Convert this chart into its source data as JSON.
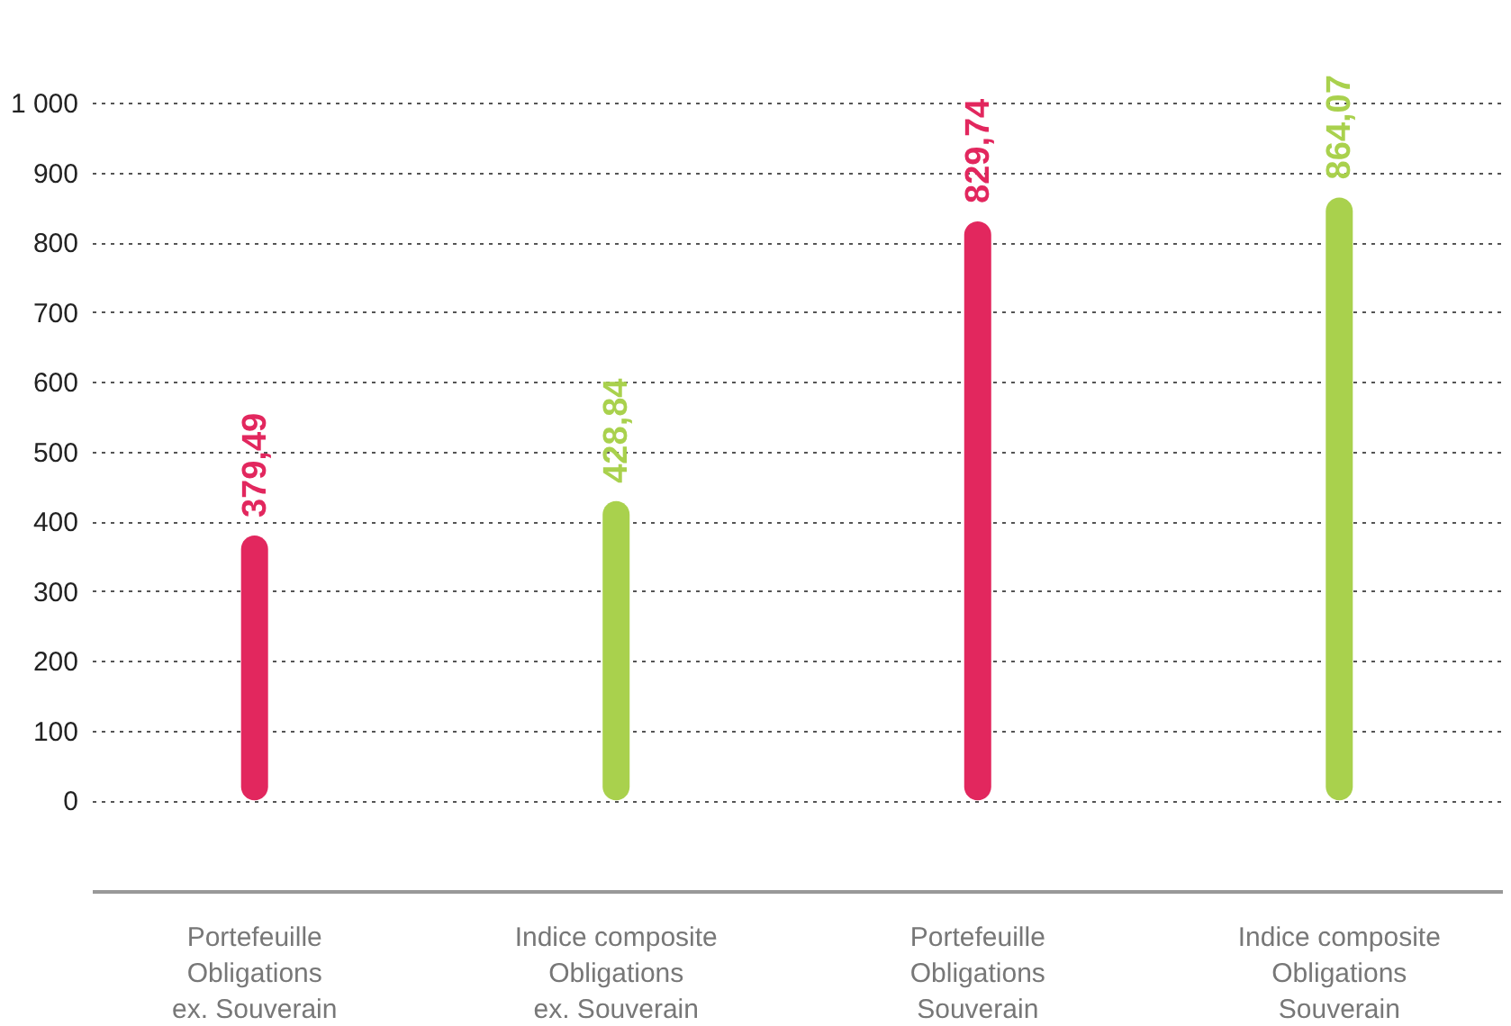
{
  "chart_data": {
    "type": "bar",
    "categories": [
      "Portefeuille\nObligations\nex. Souverain",
      "Indice composite\nObligations\nex. Souverain",
      "Portefeuille\nObligations\nSouverain",
      "Indice composite\nObligations\nSouverain"
    ],
    "values": [
      379.49,
      428.84,
      829.74,
      864.07
    ],
    "colors": [
      "#e2275e",
      "#a9d14d",
      "#e2275e",
      "#a9d14d"
    ],
    "value_labels": [
      "379,49",
      "428,84",
      "829,74",
      "864,07"
    ],
    "ylim": [
      -130,
      1000
    ],
    "yticks": [
      0,
      100,
      200,
      300,
      400,
      500,
      600,
      700,
      800,
      900,
      {
        "value": 1000,
        "label": "1 000"
      }
    ],
    "grid": "y"
  }
}
